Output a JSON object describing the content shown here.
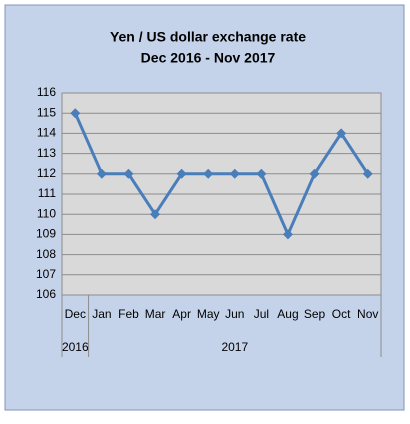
{
  "chart_data": {
    "type": "line",
    "title": "Yen / US dollar exchange rate",
    "subtitle": "Dec 2016 - Nov 2017",
    "categories": [
      "Dec",
      "Jan",
      "Feb",
      "Mar",
      "Apr",
      "May",
      "Jun",
      "Jul",
      "Aug",
      "Sep",
      "Oct",
      "Nov"
    ],
    "groups": [
      {
        "label": "2016",
        "size": 1
      },
      {
        "label": "2017",
        "size": 11
      }
    ],
    "values": [
      115,
      112,
      112,
      110,
      112,
      112,
      112,
      112,
      109,
      112,
      114,
      112
    ],
    "color": "#4a7ebb",
    "ylim": [
      106,
      116
    ],
    "yticks": [
      106,
      107,
      108,
      109,
      110,
      111,
      112,
      113,
      114,
      115,
      116
    ],
    "grid": true
  }
}
